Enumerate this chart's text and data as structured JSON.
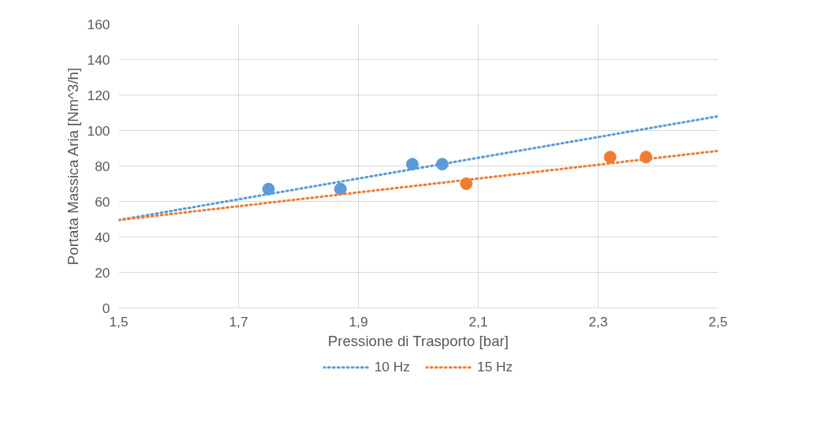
{
  "chart_data": {
    "type": "scatter",
    "xlabel": "Pressione di Trasporto [bar]",
    "ylabel": "Portata Massica Aria [Nm^3/h]",
    "xlim": [
      1.5,
      2.5
    ],
    "ylim": [
      0,
      160
    ],
    "xticks": [
      {
        "value": 1.5,
        "label": "1,5"
      },
      {
        "value": 1.7,
        "label": "1,7"
      },
      {
        "value": 1.9,
        "label": "1,9"
      },
      {
        "value": 2.1,
        "label": "2,1"
      },
      {
        "value": 2.3,
        "label": "2,3"
      },
      {
        "value": 2.5,
        "label": "2,5"
      }
    ],
    "yticks": [
      0,
      20,
      40,
      60,
      80,
      100,
      120,
      140,
      160
    ],
    "grid": true,
    "legend": "bottom",
    "series": [
      {
        "type": "scatter",
        "color": "#5b9bd5",
        "marker": "circle",
        "x": [
          1.75,
          1.87,
          1.99,
          2.04
        ],
        "values": [
          67,
          67,
          81,
          81
        ]
      },
      {
        "type": "scatter",
        "color": "#ed7d31",
        "marker": "circle",
        "x": [
          2.08,
          2.32,
          2.38
        ],
        "values": [
          70,
          85,
          85
        ]
      },
      {
        "type": "line",
        "name": "10 Hz",
        "color": "#5b9bd5",
        "line_style": "dotted",
        "x": [
          1.5,
          2.5
        ],
        "values": [
          49.5,
          108
        ]
      },
      {
        "type": "line",
        "name": "15 Hz",
        "color": "#ed7d31",
        "line_style": "dotted",
        "x": [
          1.5,
          2.5
        ],
        "values": [
          49.5,
          88.5
        ]
      }
    ]
  }
}
